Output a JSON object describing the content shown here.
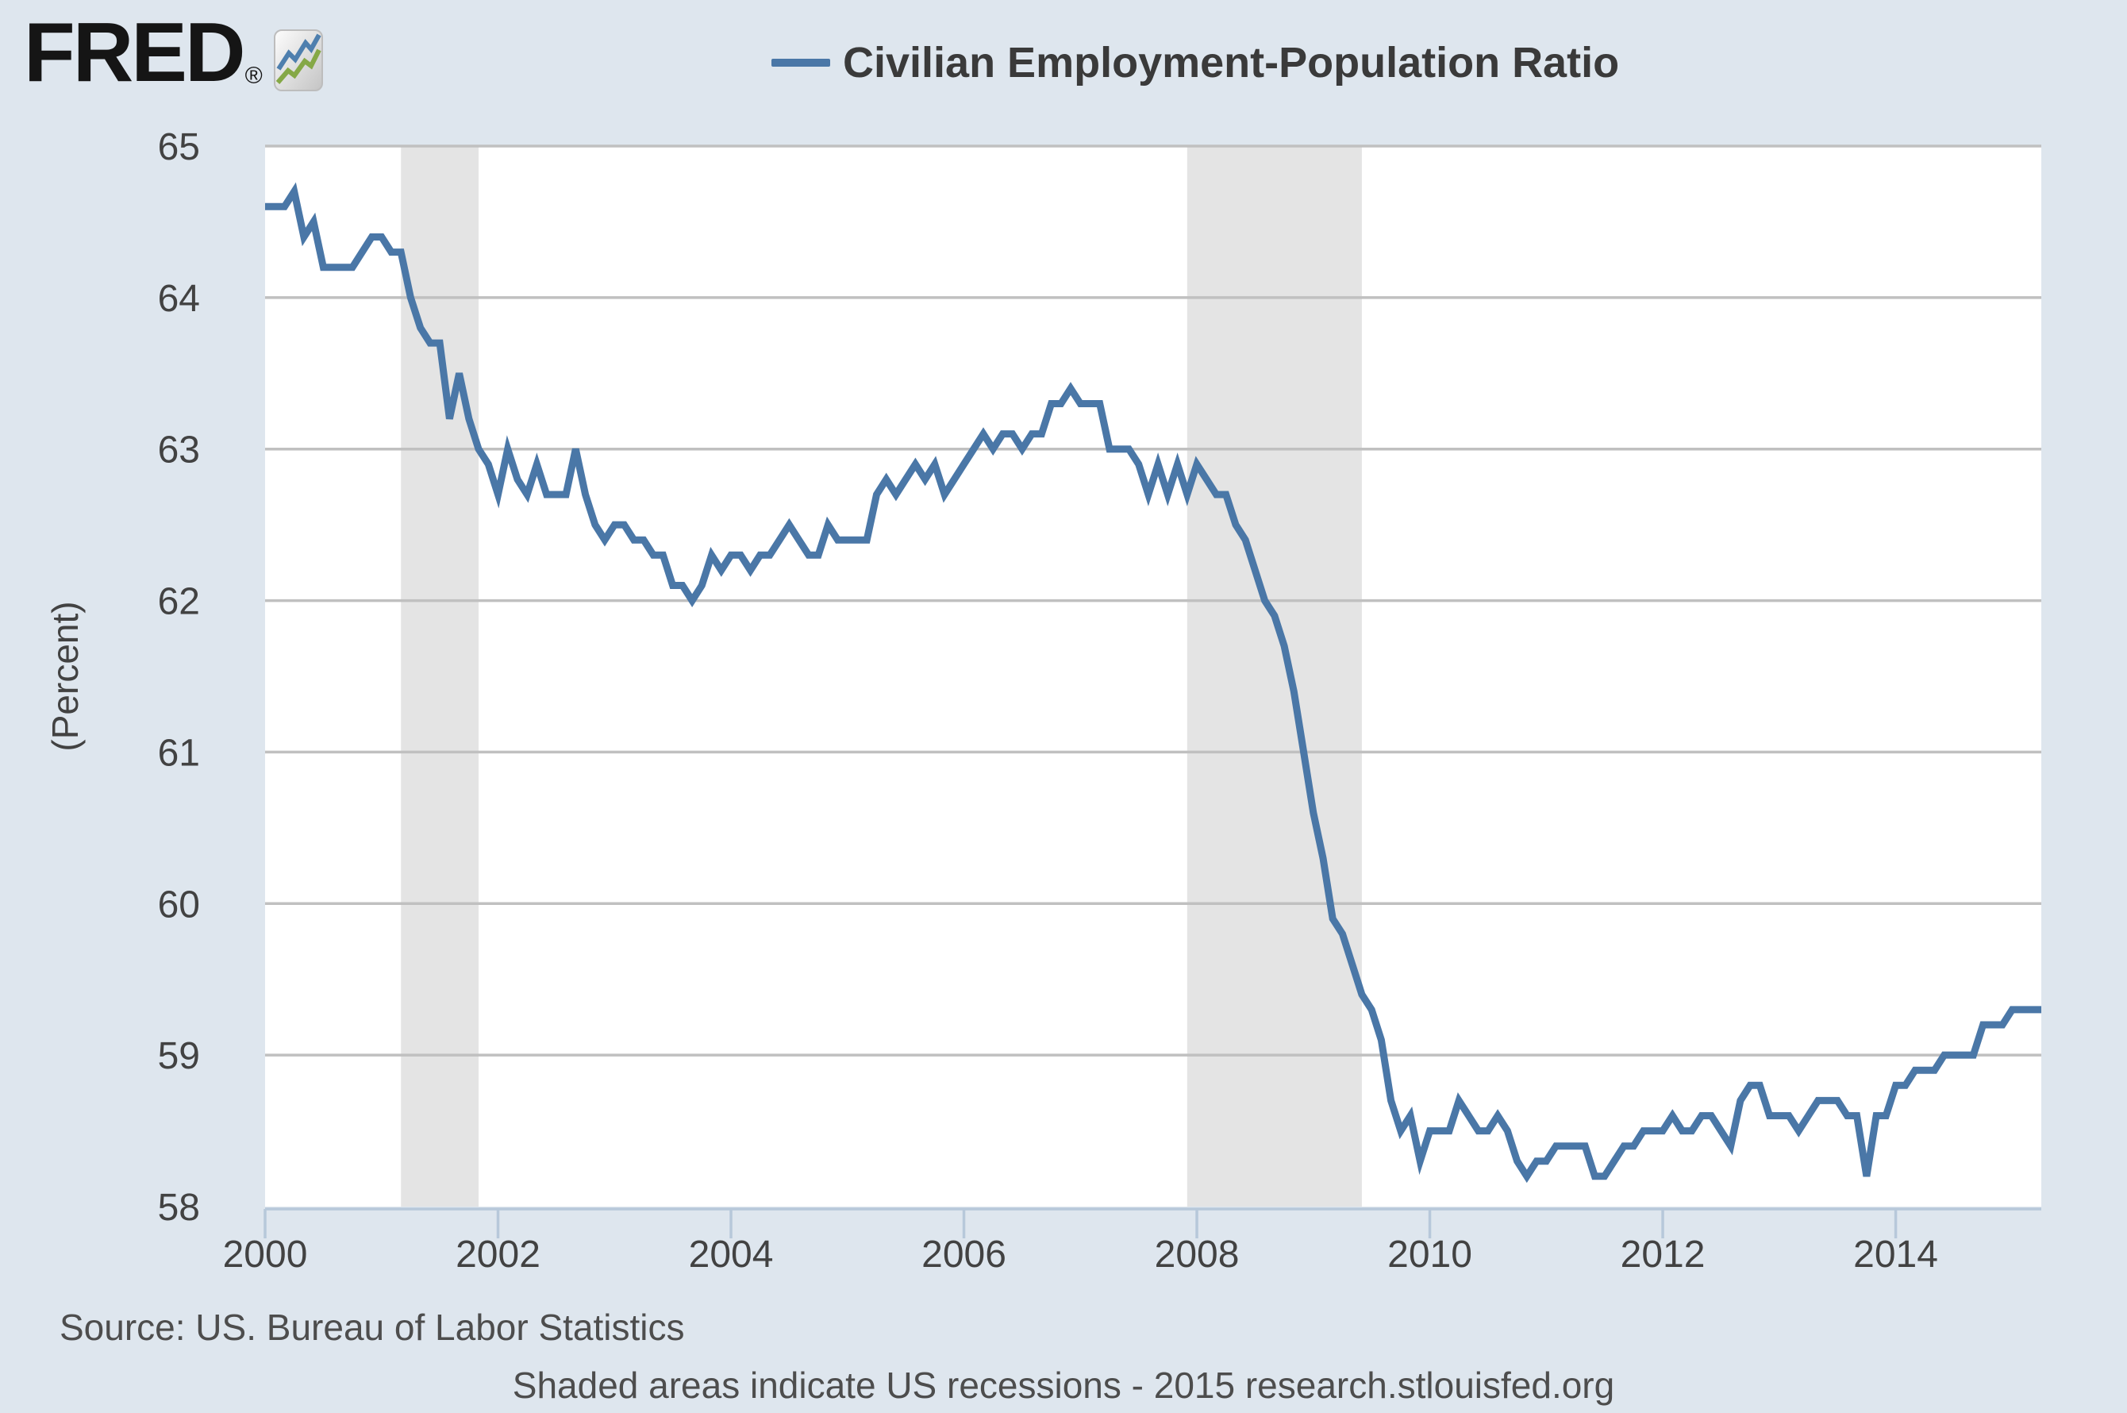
{
  "header": {
    "logo_text": "FRED",
    "logo_registered": "®",
    "legend_label": "Civilian Employment-Population Ratio"
  },
  "y_axis": {
    "unit_label": "(Percent)"
  },
  "footer": {
    "source": "Source: US. Bureau of Labor Statistics",
    "note": "Shaded areas indicate US recessions - 2015 research.stlouisfed.org"
  },
  "colors": {
    "page_background": "#dee6ee",
    "plot_background": "#ffffff",
    "gridline": "#c0c0c0",
    "recession_band": "#e4e4e4",
    "series_line": "#4a77a7",
    "axis_line": "#b7c8da",
    "tick_label": "#424242",
    "legend_text": "#3a3a3a",
    "footer_text": "#4d4d4d",
    "logo_text": "#151515",
    "logo_icon_blue": "#4e7fae",
    "logo_icon_green": "#85a846"
  },
  "chart_data": {
    "type": "line",
    "title": "Civilian Employment-Population Ratio",
    "ylabel": "(Percent)",
    "frequency": "monthly",
    "x_start": "2000-01",
    "x_end": "2015-04",
    "ylim": [
      58,
      65
    ],
    "grid": true,
    "legend_position": "top",
    "yticks": [
      65,
      64,
      63,
      62,
      61,
      60,
      59,
      58
    ],
    "xticks": [
      {
        "label": "2000",
        "month": "2000-01"
      },
      {
        "label": "2002",
        "month": "2002-01"
      },
      {
        "label": "2004",
        "month": "2004-01"
      },
      {
        "label": "2006",
        "month": "2006-01"
      },
      {
        "label": "2008",
        "month": "2008-01"
      },
      {
        "label": "2010",
        "month": "2010-01"
      },
      {
        "label": "2012",
        "month": "2012-01"
      },
      {
        "label": "2014",
        "month": "2014-01"
      }
    ],
    "recessions": [
      {
        "start": "2001-03",
        "end": "2001-11"
      },
      {
        "start": "2007-12",
        "end": "2009-06"
      }
    ],
    "series": [
      {
        "name": "Civilian Employment-Population Ratio",
        "color": "#4a77a7",
        "values": [
          64.6,
          64.6,
          64.6,
          64.7,
          64.4,
          64.5,
          64.2,
          64.2,
          64.2,
          64.2,
          64.3,
          64.4,
          64.4,
          64.3,
          64.3,
          64.0,
          63.8,
          63.7,
          63.7,
          63.2,
          63.5,
          63.2,
          63.0,
          62.9,
          62.7,
          63.0,
          62.8,
          62.7,
          62.9,
          62.7,
          62.7,
          62.7,
          63.0,
          62.7,
          62.5,
          62.4,
          62.5,
          62.5,
          62.4,
          62.4,
          62.3,
          62.3,
          62.1,
          62.1,
          62.0,
          62.1,
          62.3,
          62.2,
          62.3,
          62.3,
          62.2,
          62.3,
          62.3,
          62.4,
          62.5,
          62.4,
          62.3,
          62.3,
          62.5,
          62.4,
          62.4,
          62.4,
          62.4,
          62.7,
          62.8,
          62.7,
          62.8,
          62.9,
          62.8,
          62.9,
          62.7,
          62.8,
          62.9,
          63.0,
          63.1,
          63.0,
          63.1,
          63.1,
          63.0,
          63.1,
          63.1,
          63.3,
          63.3,
          63.4,
          63.3,
          63.3,
          63.3,
          63.0,
          63.0,
          63.0,
          62.9,
          62.7,
          62.9,
          62.7,
          62.9,
          62.7,
          62.9,
          62.8,
          62.7,
          62.7,
          62.5,
          62.4,
          62.2,
          62.0,
          61.9,
          61.7,
          61.4,
          61.0,
          60.6,
          60.3,
          59.9,
          59.8,
          59.6,
          59.4,
          59.3,
          59.1,
          58.7,
          58.5,
          58.6,
          58.3,
          58.5,
          58.5,
          58.5,
          58.7,
          58.6,
          58.5,
          58.5,
          58.6,
          58.5,
          58.3,
          58.2,
          58.3,
          58.3,
          58.4,
          58.4,
          58.4,
          58.4,
          58.2,
          58.2,
          58.3,
          58.4,
          58.4,
          58.5,
          58.5,
          58.5,
          58.6,
          58.5,
          58.5,
          58.6,
          58.6,
          58.5,
          58.4,
          58.7,
          58.8,
          58.8,
          58.6,
          58.6,
          58.6,
          58.5,
          58.6,
          58.7,
          58.7,
          58.7,
          58.6,
          58.6,
          58.2,
          58.6,
          58.6,
          58.8,
          58.8,
          58.9,
          58.9,
          58.9,
          59.0,
          59.0,
          59.0,
          59.0,
          59.2,
          59.2,
          59.2,
          59.3,
          59.3,
          59.3,
          59.3
        ]
      }
    ]
  }
}
